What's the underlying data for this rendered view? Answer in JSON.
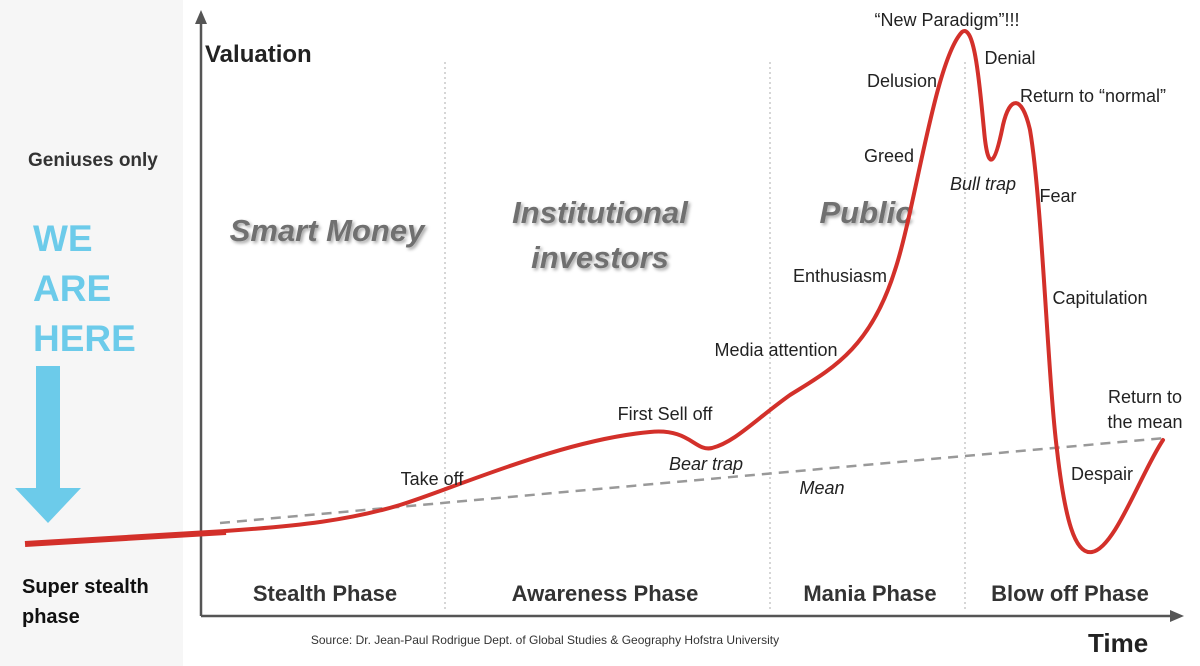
{
  "sidebar": {
    "note": "Geniuses only",
    "callout": [
      "WE",
      "ARE",
      "HERE"
    ],
    "phase_label": [
      "Super stealth",
      "phase"
    ]
  },
  "axes": {
    "y_label": "Valuation",
    "x_label": "Time"
  },
  "groups": [
    [
      "Smart Money"
    ],
    [
      "Institutional",
      "investors"
    ],
    [
      "Public"
    ]
  ],
  "curve_labels": {
    "take_off": "Take off",
    "first_sell_off": "First Sell off",
    "bear_trap": "Bear trap",
    "media_attention": "Media attention",
    "enthusiasm": "Enthusiasm",
    "greed": "Greed",
    "delusion": "Delusion",
    "new_paradigm": "“New Paradigm”!!!",
    "denial": "Denial",
    "return_to_normal": "Return to “normal”",
    "bull_trap": "Bull trap",
    "fear": "Fear",
    "capitulation": "Capitulation",
    "return_to_mean": [
      "Return to",
      "the mean"
    ],
    "despair": "Despair",
    "mean": "Mean"
  },
  "phases": [
    "Stealth Phase",
    "Awareness Phase",
    "Mania Phase",
    "Blow off Phase"
  ],
  "source": "Source: Dr. Jean-Paul Rodrigue Dept. of Global Studies & Geography Hofstra University"
}
